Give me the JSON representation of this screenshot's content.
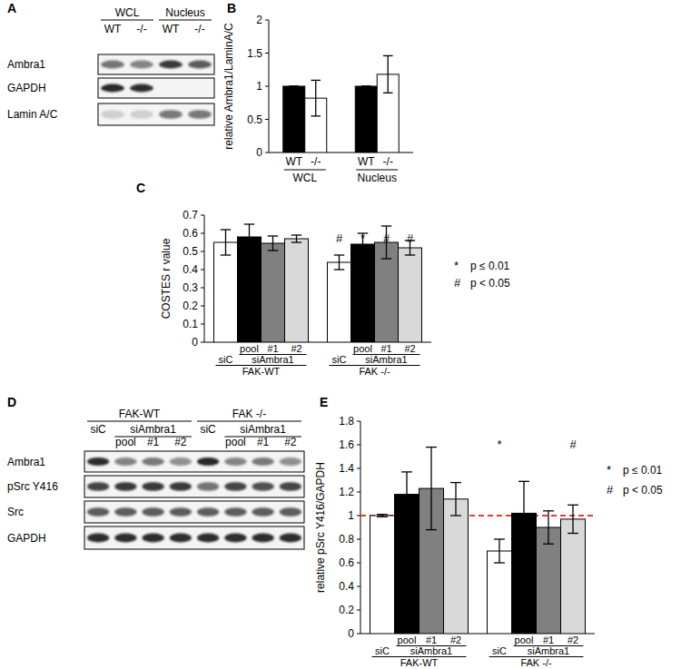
{
  "panel_labels": [
    "A",
    "B",
    "C",
    "D",
    "E"
  ],
  "blots": [
    {
      "headers": [
        [
          {
            "text": "WCL",
            "span": [
              0,
              1
            ]
          },
          {
            "text": "Nucleus",
            "span": [
              2,
              3
            ]
          }
        ],
        [
          {
            "text": "WT",
            "span": [
              0,
              0
            ]
          },
          {
            "text": "-/-",
            "span": [
              1,
              1
            ]
          },
          {
            "text": "WT",
            "span": [
              2,
              2
            ]
          },
          {
            "text": "-/-",
            "span": [
              3,
              3
            ]
          }
        ]
      ],
      "rows": [
        {
          "name": "Ambra1",
          "intensity": [
            0.6,
            0.5,
            0.85,
            0.7
          ]
        },
        {
          "name": "GAPDH",
          "intensity": [
            0.95,
            0.9,
            0,
            0
          ]
        },
        {
          "name": "Lamin A/C",
          "intensity": [
            0.15,
            0.15,
            0.55,
            0.55
          ]
        }
      ]
    },
    {
      "headers": [
        [
          {
            "text": "FAK-WT",
            "span": [
              0,
              3
            ]
          },
          {
            "text": "FAK -/-",
            "span": [
              4,
              7
            ]
          }
        ],
        [
          {
            "text": "siC",
            "span": [
              0,
              0
            ]
          },
          {
            "text": "siAmbra1",
            "span": [
              1,
              3
            ]
          },
          {
            "text": "siC",
            "span": [
              4,
              4
            ]
          },
          {
            "text": "siAmbra1",
            "span": [
              5,
              7
            ]
          }
        ],
        [
          {
            "text": "pool",
            "span": [
              1,
              1
            ]
          },
          {
            "text": "#1",
            "span": [
              2,
              2
            ]
          },
          {
            "text": "#2",
            "span": [
              3,
              3
            ]
          },
          {
            "text": "pool",
            "span": [
              5,
              5
            ]
          },
          {
            "text": "#1",
            "span": [
              6,
              6
            ]
          },
          {
            "text": "#2",
            "span": [
              7,
              7
            ]
          }
        ]
      ],
      "rows": [
        {
          "name": "Ambra1",
          "intensity": [
            0.9,
            0.5,
            0.55,
            0.45,
            0.95,
            0.5,
            0.55,
            0.45
          ]
        },
        {
          "name": "pSrc Y416",
          "intensity": [
            0.8,
            0.85,
            0.85,
            0.85,
            0.6,
            0.8,
            0.75,
            0.8
          ]
        },
        {
          "name": "Src",
          "intensity": [
            0.7,
            0.7,
            0.7,
            0.7,
            0.7,
            0.7,
            0.7,
            0.7
          ]
        },
        {
          "name": "GAPDH",
          "intensity": [
            0.9,
            0.9,
            0.9,
            0.9,
            0.9,
            0.9,
            0.9,
            0.9
          ]
        }
      ]
    }
  ],
  "chart_data": [
    {
      "type": "bar",
      "y_label": "relative Ambra1/LaminA/C",
      "categories": [
        "WCL",
        "Nucleus"
      ],
      "series": [
        {
          "name": "WT",
          "color": "#000000",
          "values": [
            1,
            1
          ],
          "errors": [
            0,
            0
          ]
        },
        {
          "name": "-/-",
          "color": "#ffffff",
          "values": [
            0.82,
            1.18
          ],
          "errors": [
            0.27,
            0.28
          ]
        }
      ],
      "ylim": [
        0,
        2
      ],
      "yticks": [
        0,
        0.5,
        1,
        1.5,
        2
      ]
    },
    {
      "type": "bar",
      "y_label": "COSTES r value",
      "categories": [
        "FAK-WT",
        "FAK -/-"
      ],
      "subgroup_label": "siAmbra1",
      "series": [
        {
          "name": "siC",
          "color": "#ffffff",
          "values": [
            0.55,
            0.44
          ],
          "errors": [
            0.07,
            0.04
          ],
          "marks": [
            null,
            "#"
          ]
        },
        {
          "name": "pool",
          "color": "#000000",
          "values": [
            0.58,
            0.54
          ],
          "errors": [
            0.07,
            0.06
          ],
          "marks": [
            null,
            "*"
          ]
        },
        {
          "name": "#1",
          "color": "#808080",
          "values": [
            0.545,
            0.55
          ],
          "errors": [
            0.04,
            0.09
          ],
          "marks": [
            null,
            "#"
          ]
        },
        {
          "name": "#2",
          "color": "#d9d9d9",
          "values": [
            0.57,
            0.52
          ],
          "errors": [
            0.02,
            0.04
          ],
          "marks": [
            null,
            "#"
          ]
        }
      ],
      "key": [
        {
          "symbol": "*",
          "text": "p ≤ 0.01"
        },
        {
          "symbol": "#",
          "text": "p < 0.05"
        }
      ],
      "ylim": [
        0,
        0.7
      ],
      "yticks": [
        0,
        0.1,
        0.2,
        0.3,
        0.4,
        0.5,
        0.6,
        0.7
      ]
    },
    {
      "type": "bar",
      "y_label": "relative pSrc Y416/GAPDH",
      "categories": [
        "FAK-WT",
        "FAK -/-"
      ],
      "subgroup_label": "siAmbra1",
      "series": [
        {
          "name": "siC",
          "color": "#ffffff",
          "values": [
            1.0,
            0.7
          ],
          "errors": [
            0.01,
            0.1
          ],
          "marks": [
            null,
            "*"
          ]
        },
        {
          "name": "pool",
          "color": "#000000",
          "values": [
            1.18,
            1.02
          ],
          "errors": [
            0.19,
            0.27
          ],
          "marks": [
            null,
            null
          ]
        },
        {
          "name": "#1",
          "color": "#808080",
          "values": [
            1.23,
            0.9
          ],
          "errors": [
            0.35,
            0.14
          ],
          "marks": [
            null,
            null
          ]
        },
        {
          "name": "#2",
          "color": "#d9d9d9",
          "values": [
            1.14,
            0.97
          ],
          "errors": [
            0.14,
            0.12
          ],
          "marks": [
            null,
            "#"
          ]
        }
      ],
      "hline": 1,
      "key": [
        {
          "symbol": "*",
          "text": "p ≤ 0.01"
        },
        {
          "symbol": "#",
          "text": "p < 0.05"
        }
      ],
      "ylim": [
        0,
        1.8
      ],
      "yticks": [
        0,
        0.2,
        0.4,
        0.6,
        0.8,
        1,
        1.2,
        1.4,
        1.6,
        1.8
      ]
    }
  ]
}
